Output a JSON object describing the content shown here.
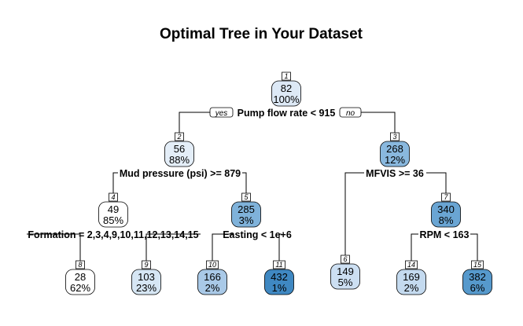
{
  "title": "Optimal Tree in Your Dataset",
  "root_labels": {
    "yes": "yes",
    "no": "no"
  },
  "nodes": [
    {
      "id": "1",
      "value": "82",
      "pct": "100%",
      "fill": "#dde9f6",
      "text": "#000000"
    },
    {
      "id": "2",
      "value": "56",
      "pct": "88%",
      "fill": "#e4eef8",
      "text": "#000000"
    },
    {
      "id": "3",
      "value": "268",
      "pct": "12%",
      "fill": "#89b8de",
      "text": "#000000"
    },
    {
      "id": "4",
      "value": "49",
      "pct": "85%",
      "fill": "#ffffff",
      "text": "#000000"
    },
    {
      "id": "5",
      "value": "285",
      "pct": "3%",
      "fill": "#7fb2da",
      "text": "#000000"
    },
    {
      "id": "6",
      "value": "149",
      "pct": "5%",
      "fill": "#ccdff2",
      "text": "#000000"
    },
    {
      "id": "7",
      "value": "340",
      "pct": "8%",
      "fill": "#6aa5d3",
      "text": "#000000"
    },
    {
      "id": "8",
      "value": "28",
      "pct": "62%",
      "fill": "#ffffff",
      "text": "#000000"
    },
    {
      "id": "9",
      "value": "103",
      "pct": "23%",
      "fill": "#d6e6f4",
      "text": "#000000"
    },
    {
      "id": "10",
      "value": "166",
      "pct": "2%",
      "fill": "#a9c9e7",
      "text": "#000000"
    },
    {
      "id": "11",
      "value": "432",
      "pct": "1%",
      "fill": "#3f88c2",
      "text": "#000000"
    },
    {
      "id": "14",
      "value": "169",
      "pct": "2%",
      "fill": "#c4daef",
      "text": "#000000"
    },
    {
      "id": "15",
      "value": "382",
      "pct": "6%",
      "fill": "#5699cc",
      "text": "#000000"
    }
  ],
  "splits": {
    "s1": "Pump flow rate < 915",
    "s2": "Mud pressure (psi) >= 879",
    "s3": "MFVIS >= 36",
    "s4": "Formation = 2,3,4,9,10,11,12,13,14,15",
    "s5": "Easting < 1e+6",
    "s7": "RPM < 163"
  }
}
